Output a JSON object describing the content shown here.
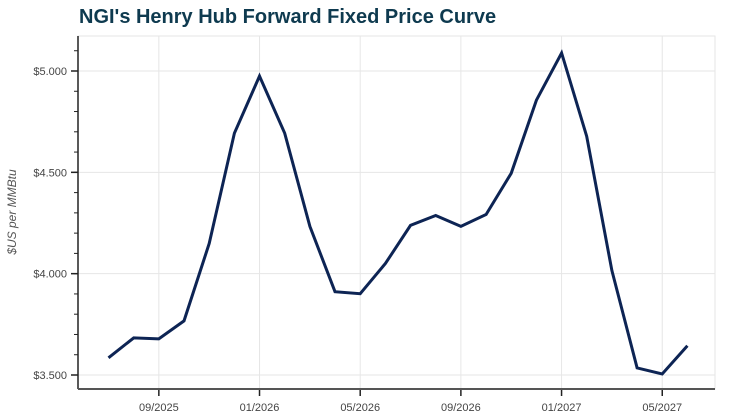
{
  "title": "NGI's Henry Hub Forward Fixed Price Curve",
  "colors": {
    "title": "#0e3a4f",
    "line": "#0d2454",
    "grid": "#e6e6e6",
    "axis": "#222222"
  },
  "chart_data": {
    "type": "line",
    "title": "NGI's Henry Hub Forward Fixed Price Curve",
    "xlabel": "",
    "ylabel": "$US per MMBtu",
    "ylim": [
      3.43,
      5.17
    ],
    "y_ticks": [
      "$3.500",
      "$4.000",
      "$4.500",
      "$5.000"
    ],
    "x_ticks": [
      "09/2025",
      "01/2026",
      "05/2026",
      "09/2026",
      "01/2027",
      "05/2027"
    ],
    "grid": true,
    "legend": null,
    "x": [
      "07/2025",
      "08/2025",
      "09/2025",
      "10/2025",
      "11/2025",
      "12/2025",
      "01/2026",
      "02/2026",
      "03/2026",
      "04/2026",
      "05/2026",
      "06/2026",
      "07/2026",
      "08/2026",
      "09/2026",
      "10/2026",
      "11/2026",
      "12/2026",
      "01/2027",
      "02/2027",
      "03/2027",
      "04/2027",
      "05/2027",
      "06/2027"
    ],
    "series": [
      {
        "name": "Henry Hub Forward Fixed Price",
        "values": [
          3.585,
          3.683,
          3.678,
          3.767,
          4.149,
          4.693,
          4.975,
          4.693,
          4.233,
          3.911,
          3.901,
          4.05,
          4.238,
          4.287,
          4.233,
          4.292,
          4.495,
          4.856,
          5.089,
          4.678,
          4.015,
          3.535,
          3.505,
          3.644
        ]
      }
    ]
  }
}
